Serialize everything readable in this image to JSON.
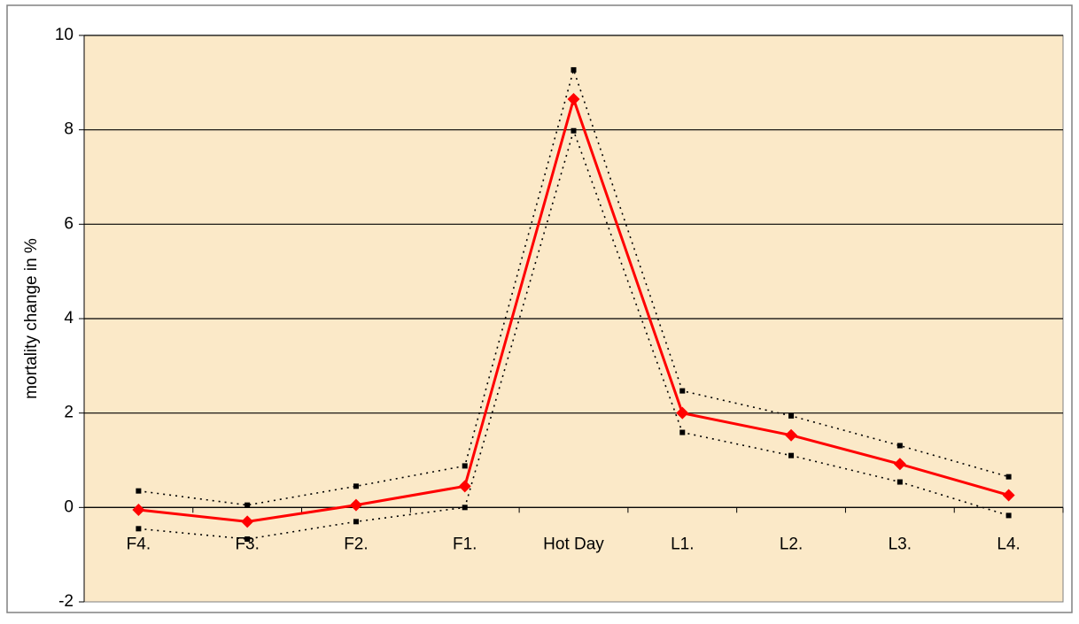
{
  "chart_data": {
    "type": "line",
    "y_label": "mortality change in %",
    "categories": [
      "F4.",
      "F3.",
      "F2.",
      "F1.",
      "Hot Day",
      "L1.",
      "L2.",
      "L3.",
      "L4."
    ],
    "series": [
      {
        "color": "#ff0000",
        "values": [
          -0.05,
          -0.3,
          0.05,
          0.45,
          8.65,
          2.0,
          1.53,
          0.92,
          0.26
        ]
      },
      {
        "color": "#000000",
        "values": [
          0.35,
          0.05,
          0.45,
          0.88,
          9.27,
          2.47,
          1.94,
          1.31,
          0.65
        ]
      },
      {
        "color": "#000000",
        "values": [
          -0.45,
          -0.67,
          -0.3,
          0.0,
          7.98,
          1.59,
          1.1,
          0.54,
          -0.17
        ]
      }
    ],
    "ylim": [
      -2,
      10
    ],
    "yticks": [
      -2,
      0,
      2,
      4,
      6,
      8,
      10
    ],
    "grid": true,
    "background": "#fbe9c8"
  }
}
